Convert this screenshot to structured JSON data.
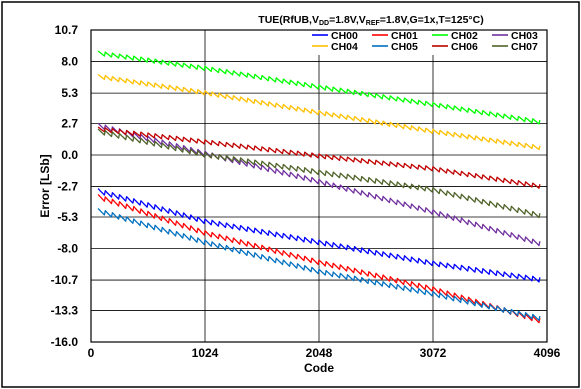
{
  "chart_data": {
    "type": "line",
    "title": {
      "prefix": "TUE(RfUB,V",
      "sub1": "DD",
      "mid": "=1.8V,V",
      "sub2": "REF",
      "suffix": "=1.8V,G=1x,T=125°C)"
    },
    "xlabel": "Code",
    "ylabel": "Error [LSb]",
    "xlim": [
      0,
      4096
    ],
    "ylim": [
      -16.0,
      10.7
    ],
    "x_ticks": [
      0,
      1024,
      2048,
      3072,
      4096
    ],
    "x_tick_labels": [
      "0",
      "1024",
      "2048",
      "3072",
      "4096"
    ],
    "y_ticks": [
      10.7,
      8.0,
      5.3,
      2.7,
      0.0,
      -2.7,
      -5.3,
      -8.0,
      -10.7,
      -13.3,
      -16.0
    ],
    "y_tick_labels": [
      "10.7",
      "8.0",
      "5.3",
      "2.7",
      "0.0",
      "-2.7",
      "-5.3",
      "-8.0",
      "-10.7",
      "-13.3",
      "-16.0"
    ],
    "grid": true,
    "legend_position": "top-right",
    "sawtooth_period_codes": 64,
    "series": [
      {
        "name": "CH00",
        "color": "#0000ff",
        "x": [
          64,
          1024,
          2048,
          3072,
          4032
        ],
        "y": [
          -3.1,
          -5.7,
          -7.5,
          -9.3,
          -10.7
        ],
        "ripple": 0.45
      },
      {
        "name": "CH01",
        "color": "#ff0000",
        "x": [
          64,
          1024,
          2048,
          3072,
          4032
        ],
        "y": [
          -3.6,
          -6.7,
          -9.2,
          -11.5,
          -14.2
        ],
        "ripple": 0.45
      },
      {
        "name": "CH02",
        "color": "#00ff00",
        "x": [
          64,
          1024,
          2048,
          3072,
          4032
        ],
        "y": [
          8.7,
          7.4,
          5.8,
          4.3,
          2.8
        ],
        "ripple": 0.4
      },
      {
        "name": "CH03",
        "color": "#7030a0",
        "x": [
          64,
          1024,
          2048,
          3072,
          4032
        ],
        "y": [
          2.5,
          0.1,
          -2.3,
          -4.9,
          -7.6
        ],
        "ripple": 0.45
      },
      {
        "name": "CH04",
        "color": "#ffc000",
        "x": [
          64,
          1024,
          2048,
          3072,
          4032
        ],
        "y": [
          6.7,
          5.3,
          3.6,
          2.0,
          0.6
        ],
        "ripple": 0.4
      },
      {
        "name": "CH05",
        "color": "#0070c0",
        "x": [
          64,
          1024,
          2048,
          3072,
          4032
        ],
        "y": [
          -4.8,
          -7.5,
          -10.0,
          -11.9,
          -14.0
        ],
        "ripple": 0.45
      },
      {
        "name": "CH06",
        "color": "#c00000",
        "x": [
          64,
          1024,
          2048,
          3072,
          4032
        ],
        "y": [
          2.2,
          1.1,
          -0.1,
          -1.2,
          -2.7
        ],
        "ripple": 0.4
      },
      {
        "name": "CH07",
        "color": "#4f6228",
        "x": [
          64,
          1024,
          2048,
          3072,
          4032
        ],
        "y": [
          2.0,
          0.0,
          -1.5,
          -3.0,
          -5.2
        ],
        "ripple": 0.45
      }
    ]
  }
}
